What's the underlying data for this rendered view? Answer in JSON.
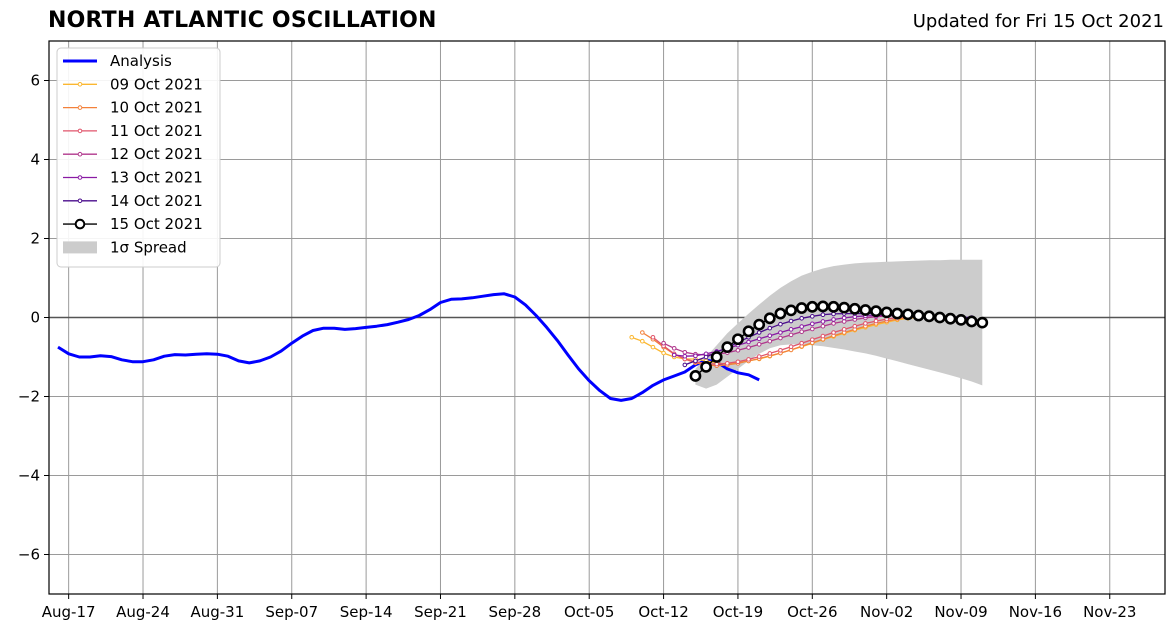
{
  "chart_data": {
    "type": "line",
    "title": "NORTH ATLANTIC OSCILLATION",
    "subtitle": "Updated for Fri 15 Oct 2021",
    "xlabel": "",
    "ylabel": "",
    "ylim": [
      -7,
      7
    ],
    "yticks": [
      -6,
      -4,
      -2,
      0,
      2,
      4,
      6
    ],
    "ytick_labels": [
      "−6",
      "−4",
      "−2",
      "0",
      "2",
      "4",
      "6"
    ],
    "xlim": [
      "2021-08-16",
      "2021-11-28"
    ],
    "xtick_dates": [
      "2021-08-17",
      "2021-08-24",
      "2021-08-31",
      "2021-09-07",
      "2021-09-14",
      "2021-09-21",
      "2021-09-28",
      "2021-10-05",
      "2021-10-12",
      "2021-10-19",
      "2021-10-26",
      "2021-11-02",
      "2021-11-09",
      "2021-11-16",
      "2021-11-23"
    ],
    "xtick_labels": [
      "Aug-17",
      "Aug-24",
      "Aug-31",
      "Sep-07",
      "Sep-14",
      "Sep-21",
      "Sep-28",
      "Oct-05",
      "Oct-12",
      "Oct-19",
      "Oct-26",
      "Nov-02",
      "Nov-09",
      "Nov-16",
      "Nov-23"
    ],
    "grid": true,
    "legend_position": "upper-left",
    "analysis": {
      "name": "Analysis",
      "color": "#0000ff",
      "start": "2021-08-16",
      "values": [
        -0.75,
        -0.92,
        -1.0,
        -1.0,
        -0.97,
        -0.99,
        -1.07,
        -1.12,
        -1.12,
        -1.07,
        -0.98,
        -0.94,
        -0.95,
        -0.93,
        -0.92,
        -0.93,
        -0.98,
        -1.1,
        -1.15,
        -1.1,
        -1.0,
        -0.85,
        -0.65,
        -0.47,
        -0.33,
        -0.27,
        -0.27,
        -0.3,
        -0.28,
        -0.25,
        -0.22,
        -0.18,
        -0.12,
        -0.05,
        0.05,
        0.2,
        0.38,
        0.46,
        0.47,
        0.5,
        0.54,
        0.58,
        0.6,
        0.52,
        0.32,
        0.05,
        -0.25,
        -0.58,
        -0.95,
        -1.3,
        -1.6,
        -1.85,
        -2.05,
        -2.1,
        -2.05,
        -1.9,
        -1.72,
        -1.58,
        -1.48,
        -1.38,
        -1.2,
        -1.08,
        -1.12,
        -1.3,
        -1.4,
        -1.45,
        -1.58
      ]
    },
    "forecasts": [
      {
        "name": "09 Oct 2021",
        "color": "#fbb730",
        "start": "2021-10-09",
        "values": [
          -0.5,
          -0.6,
          -0.75,
          -0.9,
          -1.0,
          -1.05,
          -1.05,
          -1.1,
          -1.15,
          -1.18,
          -1.15,
          -1.1,
          -1.05,
          -0.98,
          -0.9,
          -0.82,
          -0.74,
          -0.65,
          -0.56,
          -0.48,
          -0.4,
          -0.32,
          -0.25,
          -0.18,
          -0.12,
          -0.06,
          -0.02,
          0.0
        ]
      },
      {
        "name": "10 Oct 2021",
        "color": "#f3813b",
        "start": "2021-10-10",
        "values": [
          -0.38,
          -0.55,
          -0.75,
          -0.93,
          -1.05,
          -1.15,
          -1.2,
          -1.22,
          -1.2,
          -1.16,
          -1.1,
          -1.04,
          -0.97,
          -0.9,
          -0.82,
          -0.73,
          -0.64,
          -0.55,
          -0.46,
          -0.38,
          -0.3,
          -0.22,
          -0.15,
          -0.09,
          -0.04,
          0.0,
          0.02,
          0.03
        ]
      },
      {
        "name": "11 Oct 2021",
        "color": "#e0546b",
        "start": "2021-10-11",
        "values": [
          -0.5,
          -0.72,
          -0.92,
          -1.05,
          -1.12,
          -1.17,
          -1.18,
          -1.16,
          -1.12,
          -1.06,
          -0.99,
          -0.91,
          -0.83,
          -0.74,
          -0.65,
          -0.56,
          -0.47,
          -0.38,
          -0.3,
          -0.22,
          -0.15,
          -0.09,
          -0.04,
          0.0,
          0.03,
          0.05,
          0.06,
          0.06
        ]
      },
      {
        "name": "12 Oct 2021",
        "color": "#b0378c",
        "start": "2021-10-12",
        "values": [
          -0.65,
          -0.78,
          -0.88,
          -0.93,
          -0.95,
          -0.93,
          -0.89,
          -0.83,
          -0.76,
          -0.68,
          -0.6,
          -0.52,
          -0.44,
          -0.36,
          -0.29,
          -0.22,
          -0.15,
          -0.1,
          -0.05,
          -0.01,
          0.02,
          0.04,
          0.05,
          0.05,
          0.05,
          0.04,
          0.03,
          0.02
        ]
      },
      {
        "name": "13 Oct 2021",
        "color": "#8a1aa4",
        "start": "2021-10-13",
        "values": [
          -0.95,
          -0.98,
          -0.97,
          -0.92,
          -0.86,
          -0.78,
          -0.7,
          -0.62,
          -0.54,
          -0.46,
          -0.38,
          -0.3,
          -0.23,
          -0.16,
          -0.1,
          -0.05,
          -0.01,
          0.02,
          0.04,
          0.05,
          0.05,
          0.05,
          0.04,
          0.04,
          0.03,
          0.02,
          0.01,
          0.0
        ]
      },
      {
        "name": "14 Oct 2021",
        "color": "#4a0c8c",
        "start": "2021-10-14",
        "values": [
          -1.2,
          -1.1,
          -1.0,
          -0.88,
          -0.76,
          -0.63,
          -0.5,
          -0.38,
          -0.27,
          -0.17,
          -0.09,
          -0.02,
          0.03,
          0.07,
          0.09,
          0.1,
          0.1,
          0.1,
          0.09,
          0.08,
          0.07,
          0.06,
          0.05,
          0.04,
          0.03,
          0.02,
          0.01,
          0.0
        ]
      },
      {
        "name": "15 Oct 2021",
        "color": "#000000",
        "start": "2021-10-15",
        "values": [
          -1.48,
          -1.25,
          -1.0,
          -0.75,
          -0.55,
          -0.35,
          -0.18,
          -0.02,
          0.1,
          0.18,
          0.24,
          0.27,
          0.28,
          0.27,
          0.25,
          0.22,
          0.19,
          0.16,
          0.13,
          0.1,
          0.08,
          0.05,
          0.03,
          0.0,
          -0.03,
          -0.06,
          -0.1,
          -0.13
        ]
      }
    ],
    "spread": {
      "name": "1σ Spread",
      "color": "#cccccc",
      "start": "2021-10-15",
      "upper": [
        -1.3,
        -1.0,
        -0.7,
        -0.4,
        -0.15,
        0.1,
        0.33,
        0.55,
        0.75,
        0.92,
        1.06,
        1.16,
        1.24,
        1.3,
        1.34,
        1.37,
        1.39,
        1.4,
        1.41,
        1.42,
        1.43,
        1.44,
        1.45,
        1.45,
        1.46,
        1.46,
        1.46,
        1.46
      ],
      "lower": [
        -1.7,
        -1.8,
        -1.7,
        -1.5,
        -1.3,
        -1.1,
        -0.92,
        -0.78,
        -0.7,
        -0.68,
        -0.68,
        -0.7,
        -0.73,
        -0.77,
        -0.81,
        -0.86,
        -0.91,
        -0.97,
        -1.04,
        -1.11,
        -1.18,
        -1.25,
        -1.32,
        -1.39,
        -1.46,
        -1.54,
        -1.62,
        -1.72
      ]
    }
  }
}
